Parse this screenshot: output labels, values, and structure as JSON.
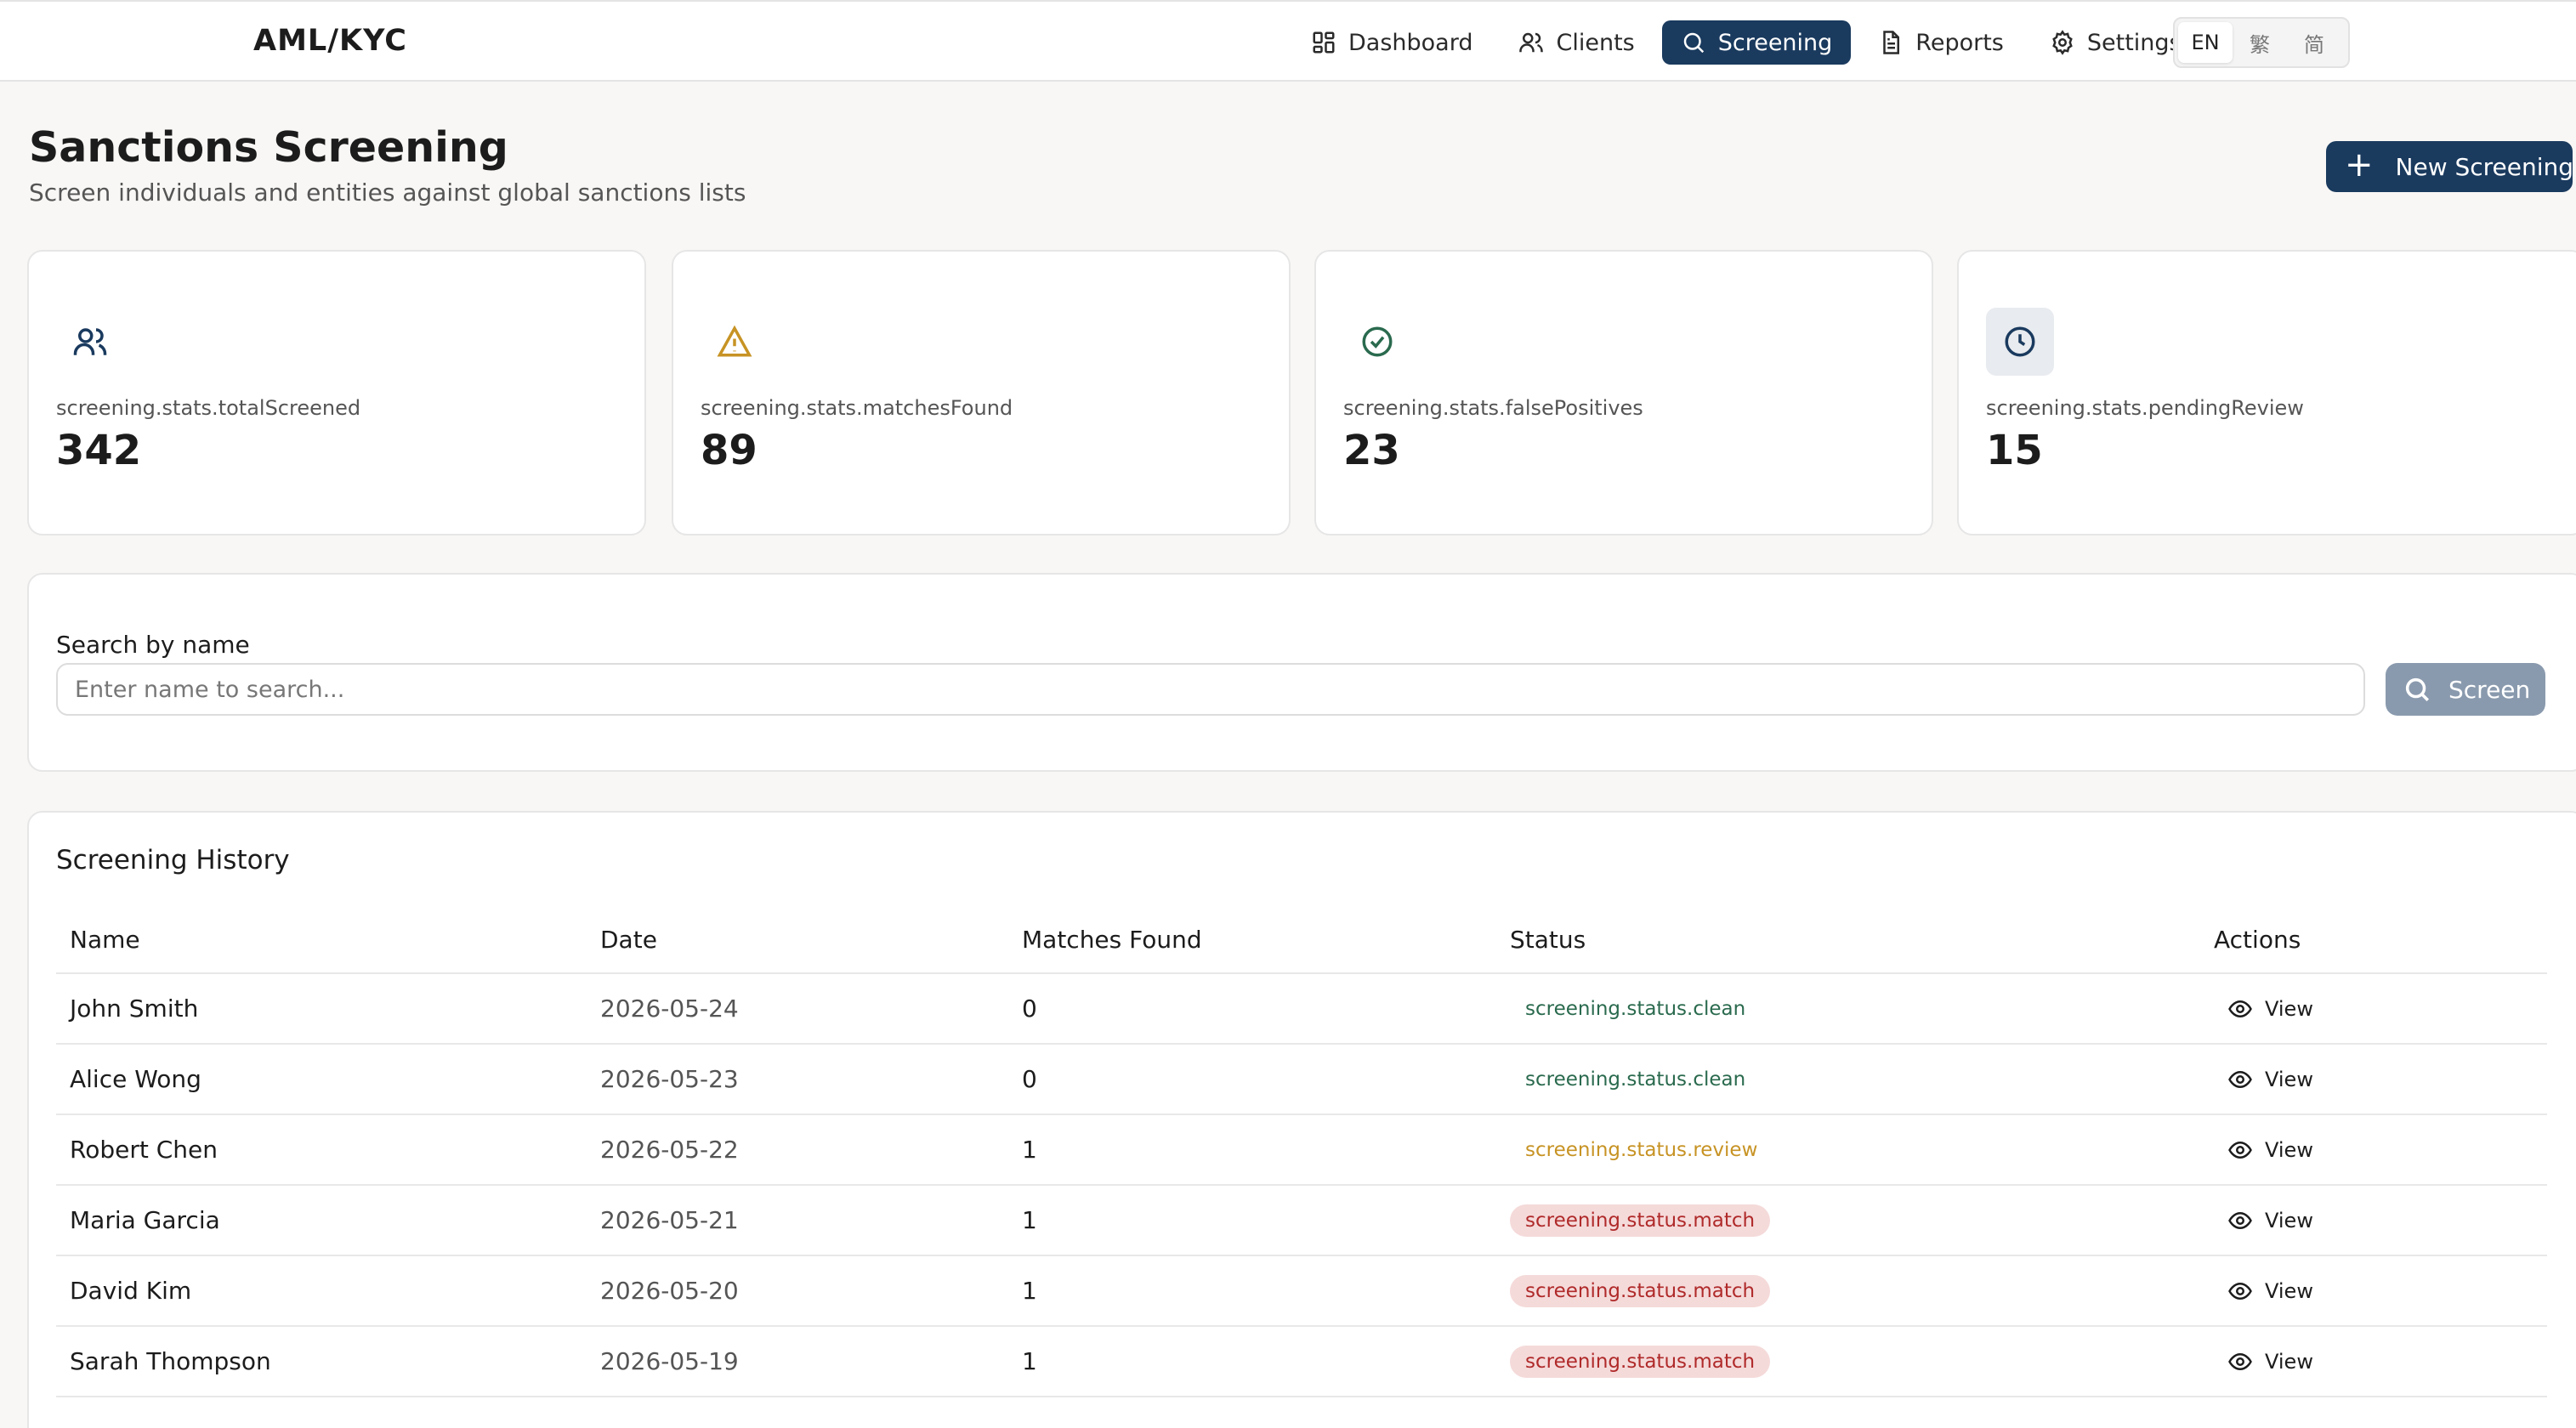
{
  "brand": "AML/KYC",
  "nav": [
    {
      "label": "Dashboard",
      "icon": "dashboard-icon"
    },
    {
      "label": "Clients",
      "icon": "users-icon"
    },
    {
      "label": "Screening",
      "icon": "search-icon",
      "active": true
    },
    {
      "label": "Reports",
      "icon": "document-icon"
    },
    {
      "label": "Settings",
      "icon": "gear-icon"
    }
  ],
  "languages": [
    "EN",
    "繁",
    "简"
  ],
  "header": {
    "title": "Sanctions Screening",
    "subtitle": "Screen individuals and entities against global sanctions lists",
    "new_button": "New Screening"
  },
  "stats": [
    {
      "label": "screening.stats.totalScreened",
      "value": "342",
      "icon": "users-icon",
      "color": "#1a3a5e"
    },
    {
      "label": "screening.stats.matchesFound",
      "value": "89",
      "icon": "warning-icon",
      "color": "#c79324"
    },
    {
      "label": "screening.stats.falsePositives",
      "value": "23",
      "icon": "check-circle-icon",
      "color": "#2a6a4e"
    },
    {
      "label": "screening.stats.pendingReview",
      "value": "15",
      "icon": "clock-icon",
      "color": "#1a3a5e"
    }
  ],
  "search": {
    "label": "Search by name",
    "placeholder": "Enter name to search...",
    "button": "Screen"
  },
  "history": {
    "title": "Screening History",
    "columns": [
      "Name",
      "Date",
      "Matches Found",
      "Status",
      "Actions"
    ],
    "rows": [
      {
        "name": "John Smith",
        "date": "2026-05-24",
        "matches": "0",
        "status": "screening.status.clean",
        "status_type": "clean",
        "action": "View"
      },
      {
        "name": "Alice Wong",
        "date": "2026-05-23",
        "matches": "0",
        "status": "screening.status.clean",
        "status_type": "clean",
        "action": "View"
      },
      {
        "name": "Robert Chen",
        "date": "2026-05-22",
        "matches": "1",
        "status": "screening.status.review",
        "status_type": "review",
        "action": "View"
      },
      {
        "name": "Maria Garcia",
        "date": "2026-05-21",
        "matches": "1",
        "status": "screening.status.match",
        "status_type": "match",
        "action": "View"
      },
      {
        "name": "David Kim",
        "date": "2026-05-20",
        "matches": "1",
        "status": "screening.status.match",
        "status_type": "match",
        "action": "View"
      },
      {
        "name": "Sarah Thompson",
        "date": "2026-05-19",
        "matches": "1",
        "status": "screening.status.match",
        "status_type": "match",
        "action": "View"
      }
    ]
  }
}
